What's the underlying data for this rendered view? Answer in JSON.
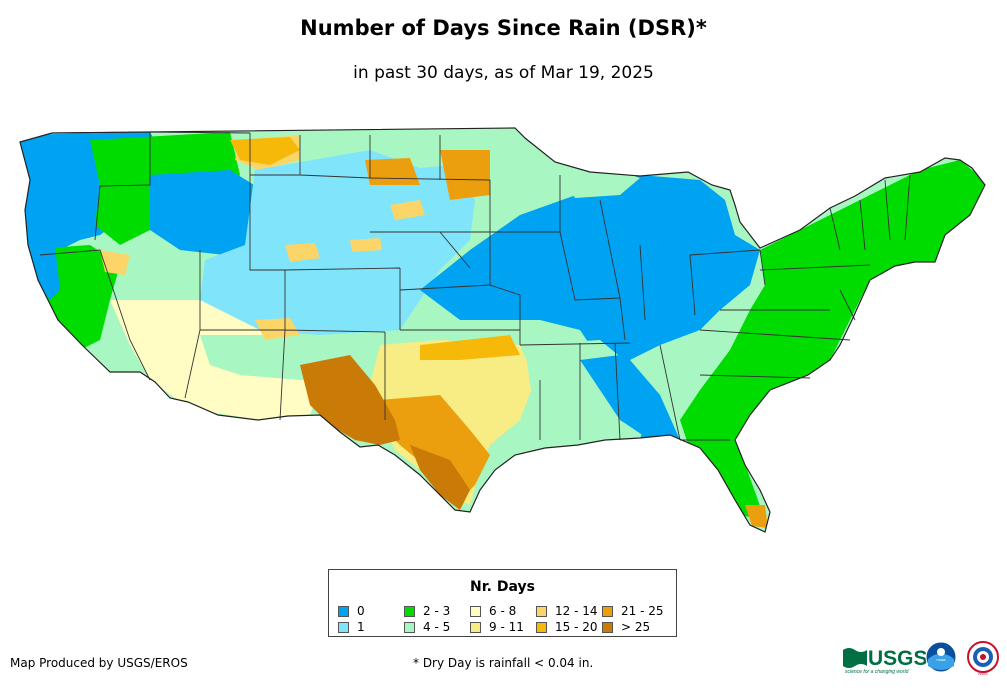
{
  "title": "Number of Days Since Rain (DSR)*",
  "subtitle": "in past 30 days, as of Mar 19, 2025",
  "legend": {
    "title": "Nr. Days",
    "items": [
      {
        "label": "0",
        "color": "#00a2f2"
      },
      {
        "label": "1",
        "color": "#80e4fb"
      },
      {
        "label": "2 - 3",
        "color": "#00dc00"
      },
      {
        "label": "4 - 5",
        "color": "#a8f7c2"
      },
      {
        "label": "6 - 8",
        "color": "#fffcc4"
      },
      {
        "label": "9 - 11",
        "color": "#f8ec84"
      },
      {
        "label": "12 - 14",
        "color": "#fcd568"
      },
      {
        "label": "15 - 20",
        "color": "#f6b90a"
      },
      {
        "label": "21 - 25",
        "color": "#ec9f0e"
      },
      {
        "label": "> 25",
        "color": "#ca7b07"
      }
    ]
  },
  "credit": "Map Produced by USGS/EROS",
  "footnote": "* Dry Day is rainfall < 0.04 in.",
  "logos": {
    "usgs": {
      "text": "USGS",
      "tagline": "science for a changing world",
      "color": "#006f41"
    },
    "noaa": {
      "text": "noaa",
      "icon": "noaa-logo-icon"
    },
    "nws": {
      "text": "NWS",
      "icon": "nws-logo-icon"
    }
  }
}
